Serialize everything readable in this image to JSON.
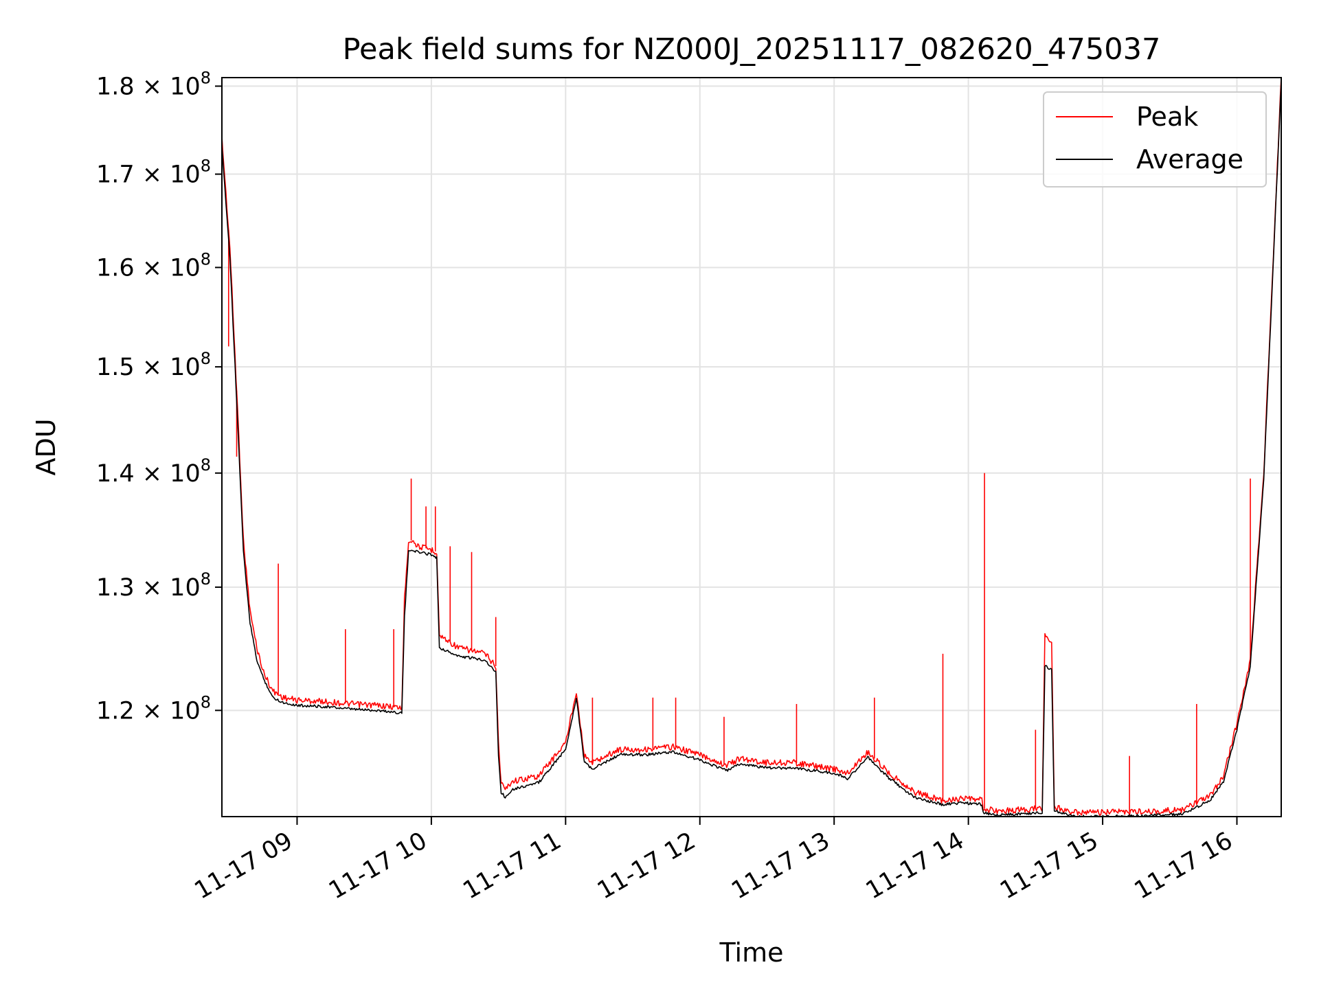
{
  "chart_data": {
    "type": "line",
    "title": "Peak field sums for NZ000J_20251117_082620_475037",
    "xlabel": "Time",
    "ylabel": "ADU",
    "x_unit": "hour of day on 11-17",
    "xlim": [
      8.44,
      16.33
    ],
    "ylim": [
      112000000,
      181000000
    ],
    "y_scale": "log",
    "grid": true,
    "legend_position": "top-right",
    "x_ticks": [
      {
        "value": 9,
        "label": "11-17 09"
      },
      {
        "value": 10,
        "label": "11-17 10"
      },
      {
        "value": 11,
        "label": "11-17 11"
      },
      {
        "value": 12,
        "label": "11-17 12"
      },
      {
        "value": 13,
        "label": "11-17 13"
      },
      {
        "value": 14,
        "label": "11-17 14"
      },
      {
        "value": 15,
        "label": "11-17 15"
      },
      {
        "value": 16,
        "label": "11-17 16"
      }
    ],
    "y_ticks": [
      {
        "value": 120000000,
        "mantissa": "1.2",
        "base": "10",
        "exp": "8"
      },
      {
        "value": 130000000,
        "mantissa": "1.3",
        "base": "10",
        "exp": "8"
      },
      {
        "value": 140000000,
        "mantissa": "1.4",
        "base": "10",
        "exp": "8"
      },
      {
        "value": 150000000,
        "mantissa": "1.5",
        "base": "10",
        "exp": "8"
      },
      {
        "value": 160000000,
        "mantissa": "1.6",
        "base": "10",
        "exp": "8"
      },
      {
        "value": 170000000,
        "mantissa": "1.7",
        "base": "10",
        "exp": "8"
      },
      {
        "value": 180000000,
        "mantissa": "1.8",
        "base": "10",
        "exp": "8"
      }
    ],
    "series": [
      {
        "name": "Peak",
        "color": "#ff0000",
        "x": [
          8.44,
          8.5,
          8.56,
          8.6,
          8.65,
          8.7,
          8.75,
          8.82,
          8.9,
          9.0,
          9.2,
          9.4,
          9.6,
          9.78,
          9.8,
          9.83,
          9.86,
          9.9,
          10.0,
          10.04,
          10.06,
          10.2,
          10.4,
          10.48,
          10.5,
          10.52,
          10.55,
          10.6,
          10.8,
          11.0,
          11.08,
          11.14,
          11.2,
          11.4,
          11.6,
          11.8,
          12.0,
          12.2,
          12.3,
          12.5,
          12.7,
          13.0,
          13.1,
          13.25,
          13.4,
          13.6,
          13.8,
          13.95,
          14.1,
          14.11,
          14.2,
          14.4,
          14.55,
          14.57,
          14.62,
          14.64,
          14.8,
          15.0,
          15.4,
          15.6,
          15.8,
          15.9,
          16.0,
          16.1,
          16.2,
          16.33
        ],
        "y": [
          174000000,
          162000000,
          145000000,
          134000000,
          128000000,
          125000000,
          123000000,
          121500000,
          121000000,
          120800000,
          120700000,
          120500000,
          120400000,
          120200000,
          129000000,
          134000000,
          134000000,
          133500000,
          133200000,
          133000000,
          126000000,
          125000000,
          124500000,
          123500000,
          117500000,
          114500000,
          114000000,
          114600000,
          115000000,
          117500000,
          121500000,
          116500000,
          116000000,
          117000000,
          117000000,
          117200000,
          116600000,
          115800000,
          116300000,
          116000000,
          116000000,
          115500000,
          115200000,
          116800000,
          115300000,
          113800000,
          113200000,
          113300000,
          113200000,
          112600000,
          112400000,
          112500000,
          112600000,
          126000000,
          125500000,
          112700000,
          112300000,
          112300000,
          112400000,
          112500000,
          113500000,
          115000000,
          119000000,
          124000000,
          140000000,
          181000000
        ]
      },
      {
        "name": "Average",
        "color": "#000000",
        "x": [
          8.44,
          8.5,
          8.56,
          8.6,
          8.65,
          8.7,
          8.75,
          8.82,
          8.9,
          9.0,
          9.2,
          9.4,
          9.6,
          9.78,
          9.8,
          9.83,
          9.86,
          9.9,
          10.0,
          10.04,
          10.06,
          10.2,
          10.4,
          10.48,
          10.5,
          10.52,
          10.55,
          10.6,
          10.8,
          11.0,
          11.08,
          11.14,
          11.2,
          11.4,
          11.6,
          11.8,
          12.0,
          12.2,
          12.3,
          12.5,
          12.7,
          13.0,
          13.1,
          13.25,
          13.4,
          13.6,
          13.8,
          13.95,
          14.1,
          14.11,
          14.2,
          14.4,
          14.55,
          14.57,
          14.62,
          14.64,
          14.8,
          15.0,
          15.4,
          15.6,
          15.8,
          15.9,
          16.0,
          16.1,
          16.2,
          16.33
        ],
        "y": [
          173000000,
          161000000,
          144000000,
          133000000,
          127000000,
          124000000,
          122500000,
          121000000,
          120600000,
          120400000,
          120300000,
          120100000,
          120000000,
          119800000,
          127500000,
          133000000,
          133200000,
          133000000,
          132800000,
          132500000,
          125000000,
          124300000,
          124000000,
          123000000,
          116500000,
          113800000,
          113400000,
          114000000,
          114500000,
          117000000,
          121000000,
          116000000,
          115500000,
          116600000,
          116600000,
          116800000,
          116200000,
          115400000,
          115900000,
          115600000,
          115600000,
          115200000,
          114800000,
          116400000,
          114900000,
          113400000,
          112900000,
          113000000,
          112900000,
          112300000,
          112100000,
          112200000,
          112300000,
          123500000,
          123200000,
          112400000,
          112000000,
          112000000,
          112100000,
          112200000,
          113200000,
          114600000,
          118500000,
          123500000,
          139500000,
          180500000
        ]
      }
    ],
    "spikes": [
      {
        "x": 8.49,
        "y": 152000000
      },
      {
        "x": 8.55,
        "y": 141500000
      },
      {
        "x": 8.86,
        "y": 132000000
      },
      {
        "x": 9.36,
        "y": 126500000
      },
      {
        "x": 9.72,
        "y": 126500000
      },
      {
        "x": 9.85,
        "y": 139500000
      },
      {
        "x": 9.96,
        "y": 137000000
      },
      {
        "x": 10.03,
        "y": 137000000
      },
      {
        "x": 10.14,
        "y": 133500000
      },
      {
        "x": 10.3,
        "y": 133000000
      },
      {
        "x": 10.48,
        "y": 127500000
      },
      {
        "x": 11.2,
        "y": 121000000
      },
      {
        "x": 11.65,
        "y": 121000000
      },
      {
        "x": 11.82,
        "y": 121000000
      },
      {
        "x": 12.18,
        "y": 119500000
      },
      {
        "x": 12.72,
        "y": 120500000
      },
      {
        "x": 13.3,
        "y": 121000000
      },
      {
        "x": 13.81,
        "y": 124500000
      },
      {
        "x": 14.12,
        "y": 140000000
      },
      {
        "x": 14.5,
        "y": 118500000
      },
      {
        "x": 15.2,
        "y": 116500000
      },
      {
        "x": 15.7,
        "y": 120500000
      },
      {
        "x": 16.1,
        "y": 139500000
      }
    ]
  }
}
